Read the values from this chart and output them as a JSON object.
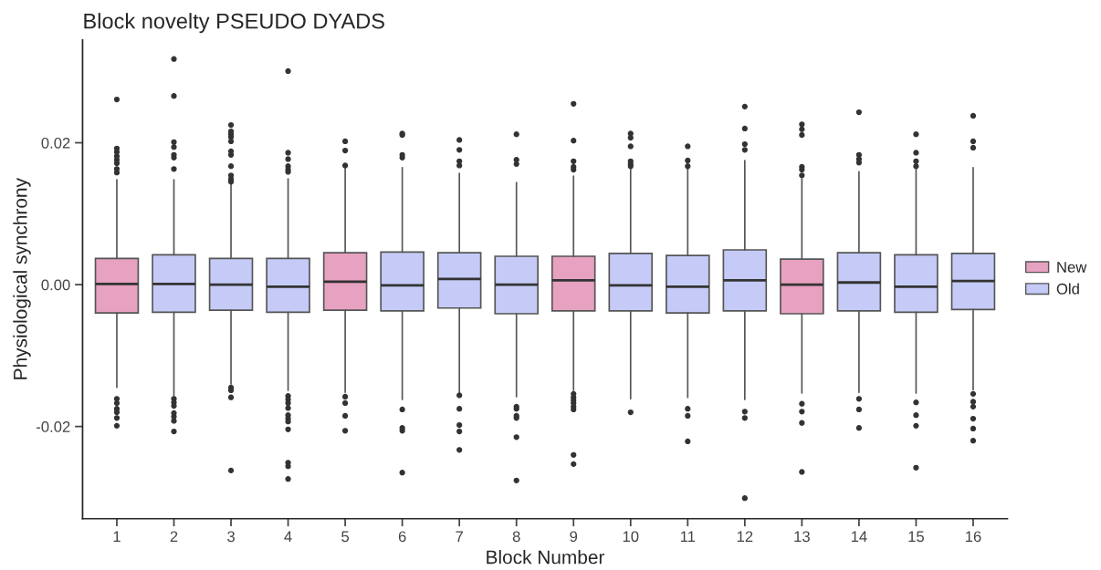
{
  "chart_data": {
    "type": "box",
    "title": "Block novelty PSEUDO DYADS",
    "xlabel": "Block Number",
    "ylabel": "Physiological synchrony",
    "categories": [
      "1",
      "2",
      "3",
      "4",
      "5",
      "6",
      "7",
      "8",
      "9",
      "10",
      "11",
      "12",
      "13",
      "14",
      "15",
      "16"
    ],
    "ylim": [
      -0.033,
      0.0345
    ],
    "yticks": [
      {
        "value": -0.02,
        "label": "-0.02"
      },
      {
        "value": 0,
        "label": "0.00"
      },
      {
        "value": 0.02,
        "label": "0.02"
      }
    ],
    "grid": false,
    "legend": "right",
    "series": [
      {
        "name": "New",
        "color": "#e7a1c1",
        "boxes": [
          {
            "low": -0.0145,
            "q1": -0.004,
            "median": 0.0001,
            "q3": 0.0037,
            "high": 0.0148,
            "outliers": [
              0.0261,
              0.0192,
              0.0187,
              0.0181,
              0.0176,
              0.0171,
              0.0163,
              0.0158,
              -0.0161,
              -0.0167,
              -0.0175,
              -0.018,
              -0.0188,
              -0.0199
            ]
          },
          null,
          null,
          null,
          {
            "low": -0.0152,
            "q1": -0.0036,
            "median": 0.0004,
            "q3": 0.0045,
            "high": 0.0165,
            "outliers": [
              0.0202,
              0.0189,
              0.0168,
              -0.0158,
              -0.0167,
              -0.0185,
              -0.0206
            ]
          },
          null,
          null,
          null,
          {
            "low": -0.0149,
            "q1": -0.0037,
            "median": 0.0006,
            "q3": 0.004,
            "high": 0.0153,
            "outliers": [
              0.0255,
              0.0203,
              0.0174,
              0.0166,
              0.0162,
              -0.0154,
              -0.0159,
              -0.0163,
              -0.0167,
              -0.0172,
              -0.0176,
              -0.024,
              -0.0253
            ]
          },
          null,
          null,
          null,
          {
            "low": -0.0153,
            "q1": -0.0041,
            "median": 0.0,
            "q3": 0.0036,
            "high": 0.0149,
            "outliers": [
              0.0226,
              0.0219,
              0.0211,
              0.0166,
              0.0162,
              0.0154,
              -0.0168,
              -0.0179,
              -0.0195,
              -0.0264
            ]
          },
          null,
          null,
          null
        ]
      },
      {
        "name": "Old",
        "color": "#c5cbf6",
        "boxes": [
          null,
          {
            "low": -0.0157,
            "q1": -0.0039,
            "median": 0.0001,
            "q3": 0.0042,
            "high": 0.0148,
            "outliers": [
              0.0318,
              0.0266,
              0.0201,
              0.0194,
              0.0183,
              0.0179,
              0.0163,
              -0.0161,
              -0.0166,
              -0.0171,
              -0.0181,
              -0.0186,
              -0.0192,
              -0.0207
            ]
          },
          {
            "low": -0.014,
            "q1": -0.0036,
            "median": 0.0,
            "q3": 0.0037,
            "high": 0.0143,
            "outliers": [
              0.0225,
              0.0216,
              0.0212,
              0.0208,
              0.0202,
              0.0188,
              0.0183,
              0.0167,
              0.0154,
              0.0149,
              0.0145,
              -0.0145,
              -0.0149,
              -0.0159,
              -0.0262
            ]
          },
          {
            "low": -0.0149,
            "q1": -0.0039,
            "median": -0.0003,
            "q3": 0.0037,
            "high": 0.0149,
            "outliers": [
              0.0301,
              0.0186,
              0.0177,
              0.0167,
              0.0162,
              0.0159,
              -0.0157,
              -0.0162,
              -0.0167,
              -0.0174,
              -0.0184,
              -0.0189,
              -0.0193,
              -0.0204,
              -0.0251,
              -0.0256,
              -0.0274
            ]
          },
          null,
          {
            "low": -0.0162,
            "q1": -0.0037,
            "median": -0.0001,
            "q3": 0.0046,
            "high": 0.0165,
            "outliers": [
              0.0213,
              0.0211,
              0.0183,
              0.0179,
              -0.0176,
              -0.0202,
              -0.0206,
              -0.0265
            ]
          },
          {
            "low": -0.0152,
            "q1": -0.0033,
            "median": 0.0008,
            "q3": 0.0045,
            "high": 0.0157,
            "outliers": [
              0.0204,
              0.019,
              0.0174,
              0.0168,
              -0.0156,
              -0.0175,
              -0.0198,
              -0.0207,
              -0.0233
            ]
          },
          {
            "low": -0.0158,
            "q1": -0.0041,
            "median": 0.0,
            "q3": 0.004,
            "high": 0.0144,
            "outliers": [
              0.0212,
              0.0176,
              0.017,
              -0.0172,
              -0.0175,
              -0.0185,
              -0.0188,
              -0.0215,
              -0.0276
            ]
          },
          null,
          {
            "low": -0.0161,
            "q1": -0.0037,
            "median": -0.0001,
            "q3": 0.0044,
            "high": 0.0165,
            "outliers": [
              0.0213,
              0.0207,
              0.0195,
              0.0174,
              0.017,
              0.0167,
              -0.018
            ]
          },
          {
            "low": -0.0159,
            "q1": -0.004,
            "median": -0.0003,
            "q3": 0.0041,
            "high": 0.0163,
            "outliers": [
              0.0195,
              0.0175,
              0.0167,
              -0.0175,
              -0.0185,
              -0.0221
            ]
          },
          {
            "low": -0.0162,
            "q1": -0.0037,
            "median": 0.0006,
            "q3": 0.0049,
            "high": 0.0175,
            "outliers": [
              0.0251,
              0.022,
              0.0198,
              0.019,
              -0.0179,
              -0.0188,
              -0.0301
            ]
          },
          null,
          {
            "low": -0.0152,
            "q1": -0.0037,
            "median": 0.0003,
            "q3": 0.0045,
            "high": 0.0159,
            "outliers": [
              0.0243,
              0.0183,
              0.0177,
              0.0172,
              -0.0161,
              -0.0176,
              -0.0202
            ]
          },
          {
            "low": -0.0153,
            "q1": -0.0039,
            "median": -0.0003,
            "q3": 0.0042,
            "high": 0.0165,
            "outliers": [
              0.0212,
              0.0186,
              0.0174,
              0.0167,
              -0.0166,
              -0.0184,
              -0.0199,
              -0.0258
            ]
          },
          {
            "low": -0.0148,
            "q1": -0.0035,
            "median": 0.0005,
            "q3": 0.0044,
            "high": 0.0165,
            "outliers": [
              0.0238,
              0.0202,
              0.0193,
              -0.0154,
              -0.0165,
              -0.0172,
              -0.0189,
              -0.0203,
              -0.022
            ]
          }
        ]
      }
    ]
  }
}
